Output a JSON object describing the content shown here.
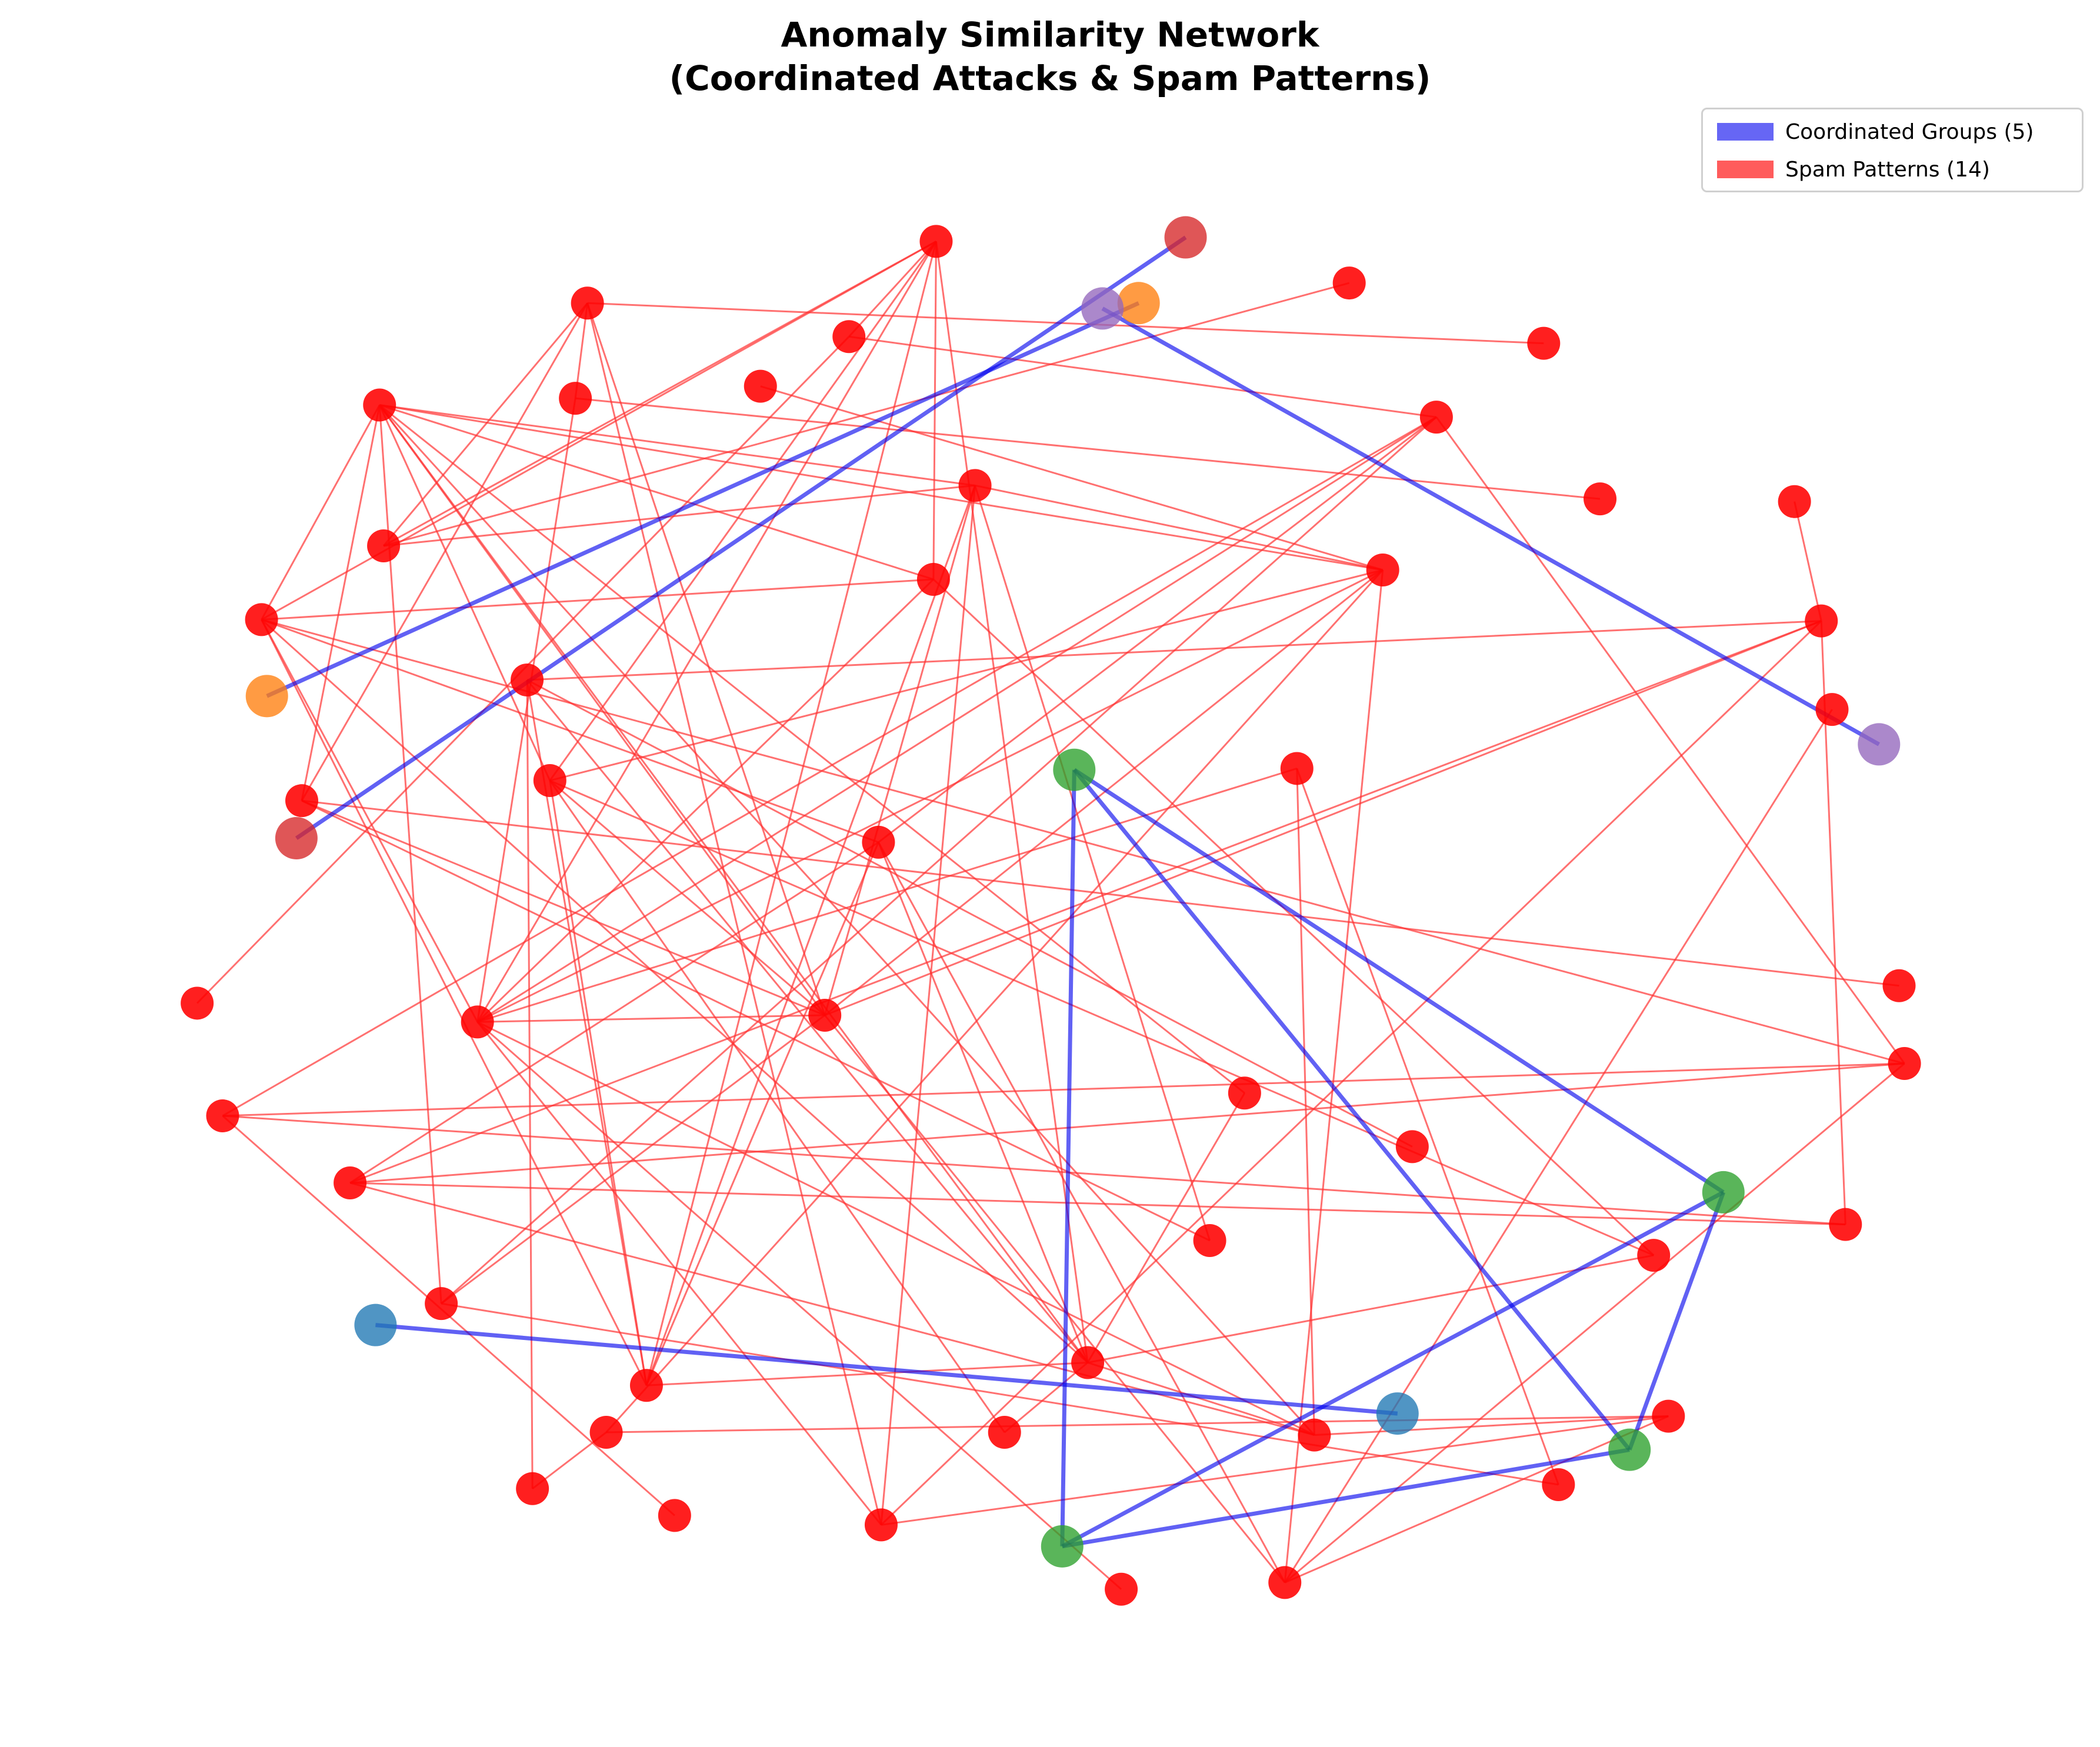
{
  "title": {
    "line1": "Anomaly Similarity Network",
    "line2": "(Coordinated Attacks & Spam Patterns)"
  },
  "legend": {
    "coordinated": {
      "label": "Coordinated Groups (5)",
      "color": "#0000ee"
    },
    "spam": {
      "label": "Spam Patterns (14)",
      "color": "#ff3333"
    }
  },
  "colors": {
    "spam_node": "#ff0000",
    "group_darkred": "#d62728",
    "group_orange": "#ff7f0e",
    "group_purple": "#9467bd",
    "group_green": "#2ca02c",
    "group_steelblue": "#1f77b4"
  }
}
